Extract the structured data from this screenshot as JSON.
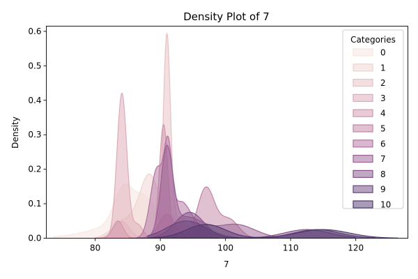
{
  "chart_data": {
    "type": "area",
    "title": "Density Plot of 7",
    "xlabel": "7",
    "ylabel": "Density",
    "xlim": [
      72.5,
      128
    ],
    "ylim": [
      0,
      0.615
    ],
    "xticks": [
      80,
      90,
      100,
      110,
      120
    ],
    "yticks": [
      0.0,
      0.1,
      0.2,
      0.3,
      0.4,
      0.5,
      0.6
    ],
    "grid": false,
    "legend": {
      "title": "Categories",
      "placement": "top-right",
      "entries": [
        "0",
        "1",
        "2",
        "3",
        "4",
        "5",
        "6",
        "7",
        "8",
        "9",
        "10"
      ]
    },
    "palette": [
      "#f7e6e0",
      "#f0d3cf",
      "#e9c0c2",
      "#deaab6",
      "#d197ae",
      "#c283a6",
      "#b0719f",
      "#9a6196",
      "#835389",
      "#6b467c",
      "#513a6e"
    ],
    "series": [
      {
        "name": "0",
        "peaks": [
          [
            76,
            0.005,
            3
          ],
          [
            82,
            0.03,
            3
          ],
          [
            84.3,
            0.11,
            1.4
          ],
          [
            87.5,
            0.1,
            1.8
          ],
          [
            91,
            0.03,
            2.5
          ]
        ],
        "range": [
          73.5,
          98
        ]
      },
      {
        "name": "1",
        "peaks": [
          [
            84.5,
            0.05,
            1.8
          ],
          [
            88.3,
            0.175,
            1.5
          ],
          [
            92.5,
            0.05,
            2.0
          ]
        ],
        "range": [
          80,
          97
        ]
      },
      {
        "name": "2",
        "peaks": [
          [
            84,
            0.05,
            1.2
          ],
          [
            91,
            0.575,
            0.55
          ],
          [
            93,
            0.06,
            1.3
          ]
        ],
        "range": [
          80,
          98
        ]
      },
      {
        "name": "3",
        "peaks": [
          [
            84.1,
            0.42,
            0.75
          ],
          [
            86.5,
            0.04,
            0.8
          ]
        ],
        "range": [
          80,
          89
        ]
      },
      {
        "name": "4",
        "peaks": [
          [
            83.5,
            0.05,
            0.8
          ],
          [
            90.5,
            0.33,
            0.65
          ],
          [
            96,
            0.04,
            0.5
          ]
        ],
        "range": [
          80,
          99
        ]
      },
      {
        "name": "5",
        "peaks": [
          [
            91,
            0.07,
            1.2
          ],
          [
            97,
            0.145,
            1.3
          ],
          [
            100.5,
            0.055,
            1.5
          ]
        ],
        "range": [
          87,
          104
        ]
      },
      {
        "name": "6",
        "peaks": [
          [
            89.5,
            0.2,
            1.0
          ],
          [
            91.2,
            0.21,
            0.6
          ],
          [
            93,
            0.08,
            1.3
          ],
          [
            95,
            0.04,
            2.0
          ]
        ],
        "range": [
          86,
          99
        ]
      },
      {
        "name": "7",
        "peaks": [
          [
            91,
            0.24,
            0.9
          ],
          [
            94,
            0.06,
            2.5
          ],
          [
            101.5,
            0.04,
            3.0
          ]
        ],
        "range": [
          85,
          108
        ]
      },
      {
        "name": "8",
        "peaks": [
          [
            94.5,
            0.075,
            2.2
          ],
          [
            112.5,
            0.025,
            3.5
          ]
        ],
        "range": [
          88,
          120
        ]
      },
      {
        "name": "9",
        "peaks": [
          [
            94,
            0.05,
            3.0
          ],
          [
            114,
            0.025,
            3.5
          ]
        ],
        "range": [
          88,
          123
        ]
      },
      {
        "name": "10",
        "peaks": [
          [
            97,
            0.04,
            3.0
          ],
          [
            115,
            0.025,
            4.0
          ]
        ],
        "range": [
          88,
          126.5
        ]
      }
    ]
  }
}
